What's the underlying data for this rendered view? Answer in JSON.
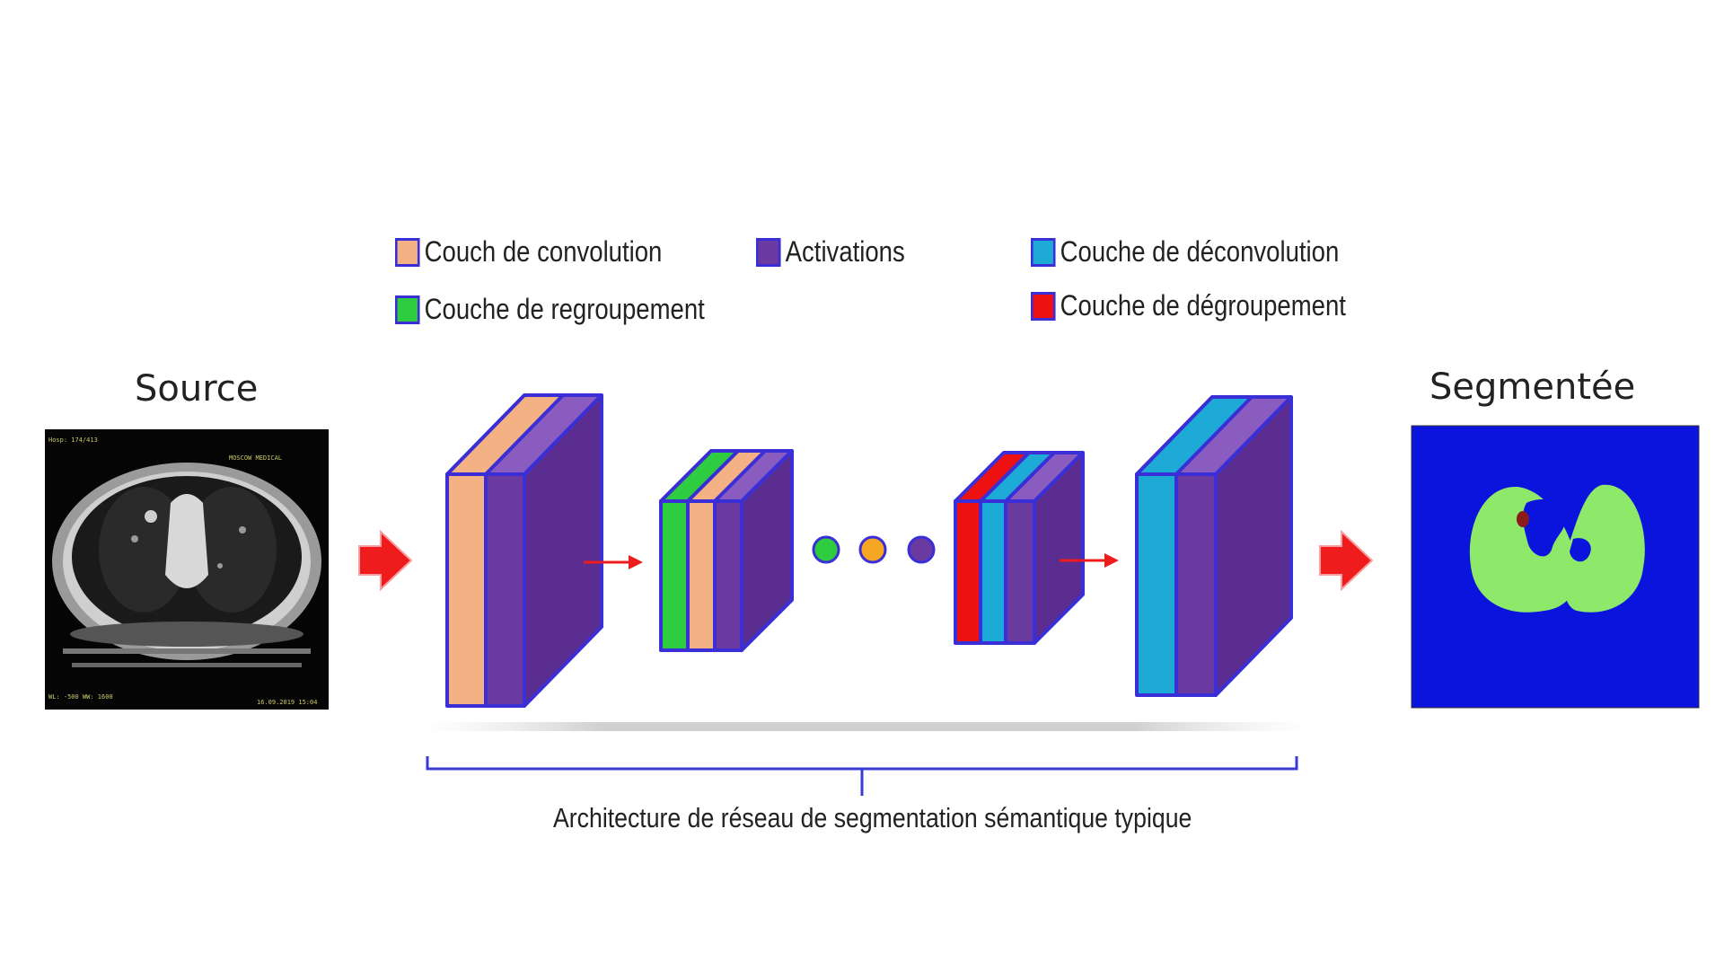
{
  "legend": {
    "items": [
      {
        "label": "Couch de convolution",
        "color": "#f4b183"
      },
      {
        "label": "Couche de regroupement",
        "color": "#2ecc40"
      },
      {
        "label": "Activations",
        "color": "#6a3aa0"
      },
      {
        "label": "Couche de déconvolution",
        "color": "#1eaad6"
      },
      {
        "label": "Couche de dégroupement",
        "color": "#ee1111"
      }
    ]
  },
  "source_label": "Source",
  "output_label": "Segmentée",
  "caption": "Architecture de réseau de segmentation sémantique typique",
  "ct_overlay": {
    "top_left": "Hosp: 174/413",
    "top_right": "MOSCOW MEDICAL",
    "bottom_left": "WL: -500 WW: 1600",
    "bottom_right": "16.09.2019 15:04"
  },
  "colors": {
    "outline": "#3a2fd6",
    "arrow": "#ee1c1c",
    "segmentation_background": "#0a14dc",
    "segmentation_lung": "#8ee86a",
    "segmentation_lesion": "#8b1a1a",
    "dot_1": "#2ecc40",
    "dot_2": "#f5a623",
    "dot_3": "#6a3aa0"
  }
}
